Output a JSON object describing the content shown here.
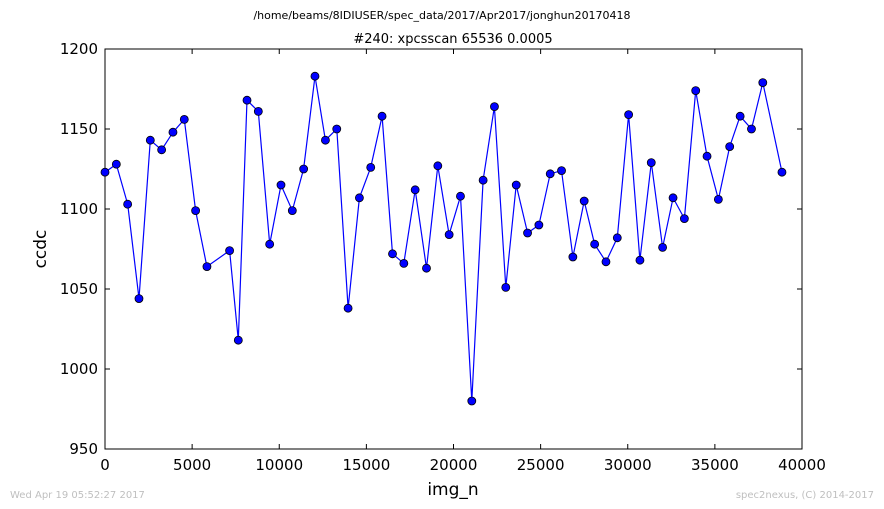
{
  "chart_data": {
    "type": "line",
    "suptitle": "/home/beams/8IDIUSER/spec_data/2017/Apr2017/jonghun20170418",
    "title": "#240: xpcsscan 65536 0.0005",
    "xlabel": "img_n",
    "ylabel": "ccdc",
    "xlim": [
      0,
      40000
    ],
    "ylim": [
      950,
      1200
    ],
    "xticks": [
      0,
      5000,
      10000,
      15000,
      20000,
      25000,
      30000,
      35000,
      40000
    ],
    "yticks": [
      950,
      1000,
      1050,
      1100,
      1150,
      1200
    ],
    "grid": false,
    "line_color": "#0000ff",
    "marker": "circle",
    "series": [
      {
        "x": [
          0,
          650,
          1300,
          1950,
          2600,
          3250,
          3900,
          4550,
          5200,
          5850,
          7150,
          7650,
          8150,
          8800,
          9450,
          10100,
          10750,
          11400,
          12050,
          12650,
          13300,
          13950,
          14600,
          15250,
          15900,
          16500,
          17150,
          17800,
          18450,
          19100,
          19750,
          20400,
          21050,
          21700,
          22350,
          23000,
          23600,
          24250,
          24900,
          25550,
          26200,
          26850,
          27500,
          28100,
          28750,
          29400,
          30050,
          30700,
          31350,
          32000,
          32600,
          33250,
          33900,
          34550,
          35200,
          35850,
          36450,
          37100,
          37750,
          38850
        ],
        "y": [
          1123,
          1128,
          1103,
          1044,
          1143,
          1137,
          1148,
          1156,
          1099,
          1064,
          1074,
          1018,
          1168,
          1161,
          1078,
          1115,
          1099,
          1125,
          1183,
          1143,
          1150,
          1038,
          1107,
          1126,
          1158,
          1072,
          1066,
          1112,
          1063,
          1127,
          1084,
          1108,
          980,
          1118,
          1164,
          1051,
          1115,
          1085,
          1090,
          1122,
          1124,
          1070,
          1105,
          1078,
          1067,
          1082,
          1159,
          1068,
          1129,
          1076,
          1107,
          1094,
          1174,
          1133,
          1106,
          1139,
          1158,
          1150,
          1179,
          1123
        ]
      }
    ]
  },
  "footer": {
    "timestamp": "Wed Apr 19 05:52:27 2017",
    "credit": "spec2nexus, (C) 2014-2017"
  }
}
